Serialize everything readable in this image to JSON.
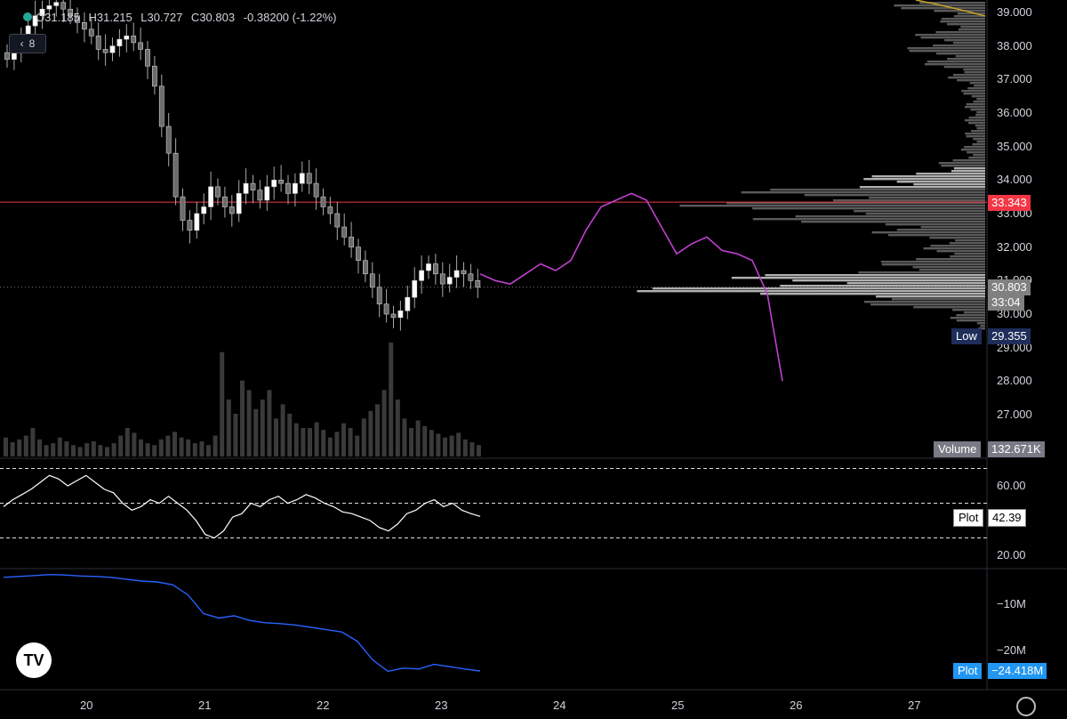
{
  "header": {
    "ohlc": [
      {
        "key": "O",
        "value": "31.185"
      },
      {
        "key": "H",
        "value": "31.215"
      },
      {
        "key": "L",
        "value": "30.727"
      },
      {
        "key": "C",
        "value": "30.803"
      }
    ],
    "change": "-0.38200 (-1.22%)",
    "layers_count": "8"
  },
  "price_axis": {
    "labels": [
      "39.000",
      "38.000",
      "37.000",
      "36.000",
      "35.000",
      "34.000",
      "33.000",
      "32.000",
      "31.000",
      "30.000",
      "29.000",
      "28.000",
      "27.000"
    ]
  },
  "tags": {
    "red_price": "33.343",
    "last_price": "30.803",
    "countdown": "33:04",
    "low_label": "Low",
    "low_value": "29.355",
    "volume_label": "Volume",
    "volume_value": "132.671K",
    "rsi_label": "Plot",
    "rsi_value": "42.39",
    "obv_label": "Plot",
    "obv_value": "−24.418M"
  },
  "rsi_axis": {
    "labels": [
      "60.00",
      "20.00"
    ]
  },
  "obv_axis": {
    "labels": [
      "−10M",
      "−20M"
    ]
  },
  "time_axis": {
    "labels": [
      "20",
      "21",
      "22",
      "23",
      "24",
      "25",
      "26",
      "27"
    ]
  },
  "colors": {
    "background": "#000000",
    "candle": "#ffffff",
    "candle_dark": "#6b6b6b",
    "projection": "#c040d0",
    "red_line": "#f23645",
    "obv": "#2962ff",
    "rsi": "#ffffff"
  },
  "icons": [
    "layers-icon",
    "tradingview-logo-icon",
    "settings-icon"
  ],
  "chart_data": [
    {
      "type": "line",
      "title": "",
      "description_series": "price close (approx, hourly)",
      "x_start_label": "20",
      "values": [
        37.6,
        37.9,
        38.2,
        38.6,
        38.9,
        39.1,
        39.2,
        39.3,
        39.1,
        38.9,
        38.7,
        38.5,
        38.3,
        37.9,
        37.8,
        38.0,
        38.2,
        38.3,
        38.1,
        37.9,
        37.4,
        36.8,
        35.6,
        34.8,
        33.5,
        32.8,
        32.5,
        33.0,
        33.2,
        33.8,
        33.5,
        33.2,
        33.0,
        33.6,
        33.9,
        33.7,
        33.4,
        33.8,
        34.0,
        33.9,
        33.6,
        33.9,
        34.2,
        33.9,
        33.5,
        33.2,
        33.0,
        32.6,
        32.3,
        32.0,
        31.6,
        31.2,
        30.8,
        30.3,
        30.0,
        29.9,
        30.1,
        30.5,
        31.0,
        31.3,
        31.5,
        31.2,
        30.9,
        31.1,
        31.3,
        31.2,
        31.0,
        30.8
      ],
      "ylim": [
        26.5,
        39.3
      ]
    },
    {
      "type": "line",
      "title": "",
      "description_series": "projection (magenta)",
      "values": [
        31.2,
        31.0,
        30.9,
        31.2,
        31.5,
        31.3,
        31.6,
        32.5,
        33.2,
        33.4,
        33.6,
        33.4,
        32.6,
        31.8,
        32.1,
        32.3,
        31.9,
        31.8,
        31.6,
        30.6,
        28.0
      ],
      "ylim": [
        26.5,
        39.3
      ]
    },
    {
      "type": "bar",
      "title": "",
      "description_series": "volume",
      "values": [
        20,
        15,
        18,
        22,
        30,
        18,
        12,
        14,
        20,
        16,
        12,
        10,
        14,
        16,
        12,
        10,
        14,
        22,
        30,
        25,
        18,
        14,
        12,
        18,
        22,
        26,
        20,
        18,
        14,
        16,
        12,
        22,
        110,
        60,
        45,
        80,
        70,
        50,
        60,
        70,
        40,
        55,
        45,
        35,
        30,
        30,
        36,
        28,
        20,
        26,
        35,
        30,
        22,
        40,
        48,
        55,
        70,
        120,
        60,
        40,
        30,
        38,
        32,
        28,
        24,
        20,
        22,
        25,
        18,
        15,
        12
      ],
      "value_label": "132.671K"
    },
    {
      "type": "line",
      "title": "",
      "description_series": "RSI",
      "values": [
        48,
        52,
        55,
        58,
        62,
        66,
        64,
        60,
        63,
        66,
        62,
        58,
        56,
        50,
        46,
        48,
        52,
        50,
        54,
        50,
        46,
        40,
        32,
        30,
        34,
        42,
        44,
        50,
        48,
        52,
        54,
        50,
        52,
        55,
        53,
        50,
        48,
        45,
        44,
        42,
        40,
        36,
        34,
        38,
        44,
        46,
        50,
        52,
        48,
        50,
        46,
        44,
        42.39
      ],
      "ylim": [
        10,
        75
      ],
      "hlines": [
        70,
        50,
        30
      ]
    },
    {
      "type": "line",
      "title": "",
      "description_series": "OBV",
      "values": [
        -4.2,
        -4.0,
        -3.8,
        -3.6,
        -3.7,
        -3.9,
        -4.0,
        -4.2,
        -4.6,
        -5.0,
        -5.2,
        -5.8,
        -8.0,
        -12.0,
        -13.0,
        -12.5,
        -13.5,
        -14.0,
        -14.2,
        -14.5,
        -15.0,
        -15.5,
        -16.0,
        -18.0,
        -22.0,
        -24.5,
        -23.8,
        -24.0,
        -23.0,
        -23.5,
        -24.0,
        -24.418
      ],
      "ylim": [
        -27,
        -2
      ]
    }
  ]
}
